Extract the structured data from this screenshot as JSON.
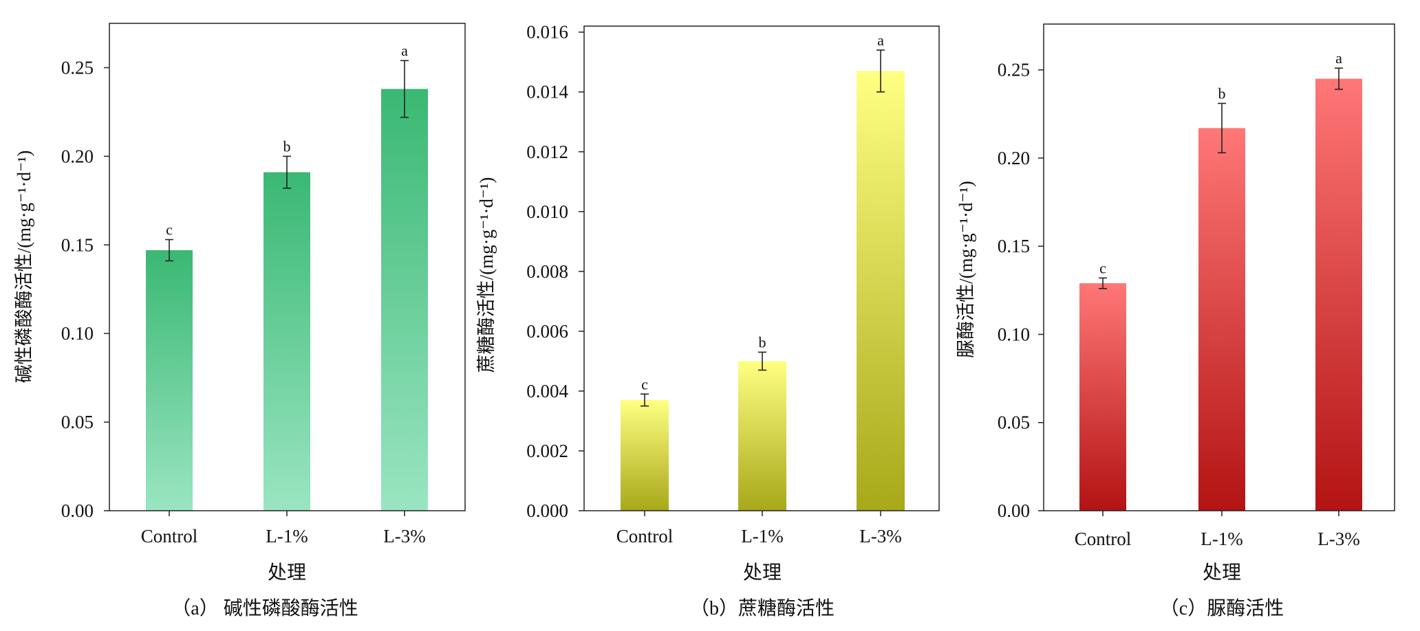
{
  "chart_data": [
    {
      "type": "bar",
      "categories": [
        "Control",
        "L-1%",
        "L-3%"
      ],
      "values": [
        0.147,
        0.191,
        0.238
      ],
      "errors": [
        0.006,
        0.009,
        0.016
      ],
      "significance": [
        "c",
        "b",
        "a"
      ],
      "xlabel": "处理",
      "ylabel": "碱性磷酸酶活性/(mg·g⁻¹·d⁻¹)",
      "ylim": [
        0,
        0.275
      ],
      "yticks": [
        0.0,
        0.05,
        0.1,
        0.15,
        0.2,
        0.25
      ],
      "ytick_labels": [
        "0.00",
        "0.05",
        "0.10",
        "0.15",
        "0.20",
        "0.25"
      ],
      "caption": "（a） 碱性磷酸酶活性",
      "grid": false,
      "bar_colors": {
        "top": "#3ab873",
        "bottom": "#9ae5c2"
      }
    },
    {
      "type": "bar",
      "categories": [
        "Control",
        "L-1%",
        "L-3%"
      ],
      "values": [
        0.0037,
        0.005,
        0.0147
      ],
      "errors": [
        0.0002,
        0.0003,
        0.0007
      ],
      "significance": [
        "c",
        "b",
        "a"
      ],
      "xlabel": "处理",
      "ylabel": "蔗糖酶活性/(mg·g⁻¹·d⁻¹)",
      "ylim": [
        0,
        0.0162
      ],
      "yticks": [
        0.0,
        0.002,
        0.004,
        0.006,
        0.008,
        0.01,
        0.012,
        0.014,
        0.016
      ],
      "ytick_labels": [
        "0.000",
        "0.002",
        "0.004",
        "0.006",
        "0.008",
        "0.010",
        "0.012",
        "0.014",
        "0.016"
      ],
      "caption": "（b）蔗糖酶活性",
      "grid": false,
      "bar_colors": {
        "top": "#ffff82",
        "bottom": "#a8a81a"
      }
    },
    {
      "type": "bar",
      "categories": [
        "Control",
        "L-1%",
        "L-3%"
      ],
      "values": [
        0.129,
        0.217,
        0.245
      ],
      "errors": [
        0.003,
        0.014,
        0.006
      ],
      "significance": [
        "c",
        "b",
        "a"
      ],
      "xlabel": "处理",
      "ylabel": "脲酶活性/(mg·g⁻¹·d⁻¹)",
      "ylim": [
        0,
        0.276
      ],
      "yticks": [
        0.0,
        0.05,
        0.1,
        0.15,
        0.2,
        0.25
      ],
      "ytick_labels": [
        "0.00",
        "0.05",
        "0.10",
        "0.15",
        "0.20",
        "0.25"
      ],
      "caption": "（c）脲酶活性",
      "grid": false,
      "bar_colors": {
        "top": "#ff7777",
        "bottom": "#b31313"
      }
    }
  ]
}
